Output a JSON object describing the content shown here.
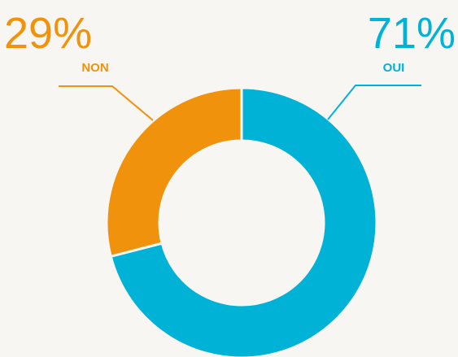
{
  "chart_data": {
    "type": "donut",
    "categories": [
      "OUI",
      "NON"
    ],
    "values": [
      71,
      29
    ],
    "value_labels": [
      "71%",
      "29%"
    ],
    "colors": [
      "#00b2d6",
      "#f0920b"
    ]
  }
}
